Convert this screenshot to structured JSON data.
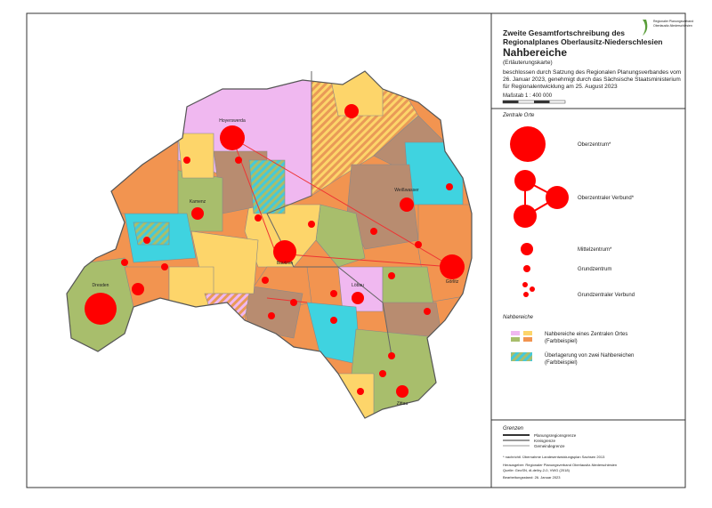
{
  "header": {
    "title_line1": "Zweite Gesamtfortschreibung des",
    "title_line2": "Regionalplanes Oberlausitz-Niederschlesien",
    "subtitle": "Nahbereiche",
    "note": "(Erläuterungskarte)",
    "decision_line1": "beschlossen durch Satzung des Regionalen Planungsverbandes vom",
    "decision_line2": "26. Januar 2023, genehmigt durch das Sächsische Staatsministerium",
    "decision_line3": "für Regionalentwicklung am 25. August 2023",
    "scale": "Maßstab 1 : 400 000",
    "logo_line1": "Regionaler Planungsverband",
    "logo_line2": "Oberlausitz-Niederschlesien"
  },
  "legend": {
    "central_places_title": "Zentrale Orte",
    "central_places": [
      "Oberzentrum*",
      "Oberzentraler Verbund*",
      "Mittelzentrum*",
      "Grundzentrum",
      "Grundzentraler Verbund"
    ],
    "areas_title": "Nahbereiche",
    "area_single": [
      "Nahbereiche eines Zentralen Ortes",
      "(Farbbeispiel)"
    ],
    "area_overlap": [
      "Überlagerung von zwei Nahbereichen",
      "(Farbbeispiel)"
    ],
    "borders_title": "Grenzen",
    "borders": [
      "Planungsregionsgrenze",
      "Kreisgrenze",
      "Gemeindegrenze"
    ],
    "footnote": "* nachrichtl. Übernahme Landesentwicklungsplan Sachsen 2013",
    "publisher": "Herausgeber: Regionaler Planungsverband Oberlausitz-Niederschlesien",
    "source": "Quelle: GeoSN, dl-de/by-2-0, VWG (2018)",
    "status": "Bearbeitungsstand: 26. Januar 2023"
  },
  "map": {
    "labels": [
      "Hoyerswerda",
      "Bautzen",
      "Görlitz",
      "Zittau",
      "Kamenz",
      "Dresden",
      "Weißwasser",
      "Löbau"
    ]
  }
}
